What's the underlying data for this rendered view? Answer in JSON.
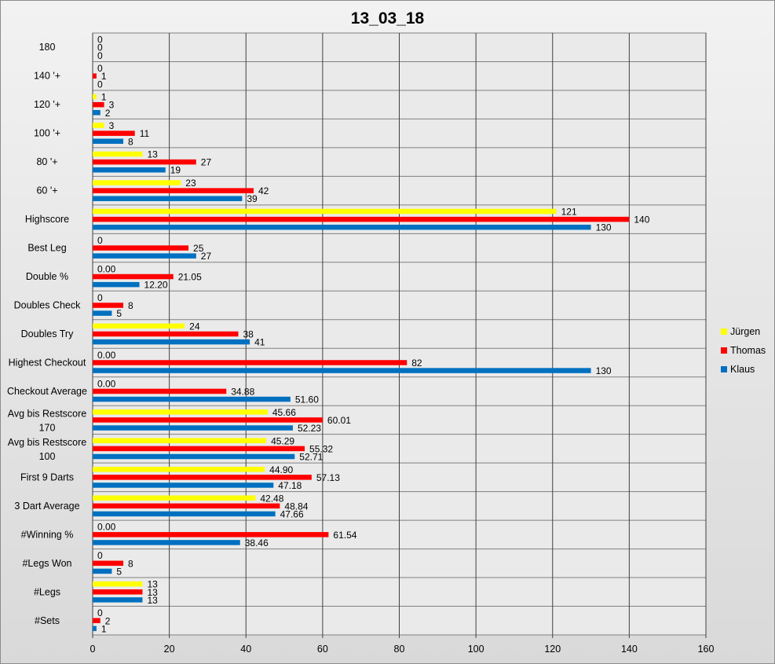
{
  "chart_data": {
    "type": "bar",
    "orientation": "horizontal",
    "title": "13_03_18",
    "xlim": [
      0,
      160
    ],
    "xticks": [
      0,
      20,
      40,
      60,
      80,
      100,
      120,
      140,
      160
    ],
    "grid": "vertical",
    "legend_position": "right",
    "categories": [
      "180",
      "140 '+",
      "120 '+",
      "100 '+",
      "80 '+",
      "60 '+",
      "Highscore",
      "Best Leg",
      "Double %",
      "Doubles Check",
      "Doubles Try",
      "Highest Checkout",
      "Checkout Average",
      "Avg bis Restscore 170",
      "Avg bis Restscore 100",
      "First 9 Darts",
      "3 Dart Average",
      "#Winning %",
      "#Legs Won",
      "#Legs",
      "#Sets"
    ],
    "series": [
      {
        "name": "Jürgen",
        "color": "#ffff00",
        "values": [
          0,
          0,
          1,
          3,
          13,
          23,
          121,
          0,
          0,
          0,
          24,
          0,
          0,
          45.66,
          45.29,
          44.9,
          42.48,
          0,
          0,
          13,
          0
        ],
        "labels": [
          "0",
          "0",
          "1",
          "3",
          "13",
          "23",
          "121",
          "0",
          "0.00",
          "0",
          "24",
          "0.00",
          "0.00",
          "45.66",
          "45.29",
          "44.90",
          "42.48",
          "0.00",
          "0",
          "13",
          "0"
        ]
      },
      {
        "name": "Thomas",
        "color": "#ff0000",
        "values": [
          0,
          1,
          3,
          11,
          27,
          42,
          140,
          25,
          21.05,
          8,
          38,
          82,
          34.88,
          60.01,
          55.32,
          57.13,
          48.84,
          61.54,
          8,
          13,
          2
        ],
        "labels": [
          "0",
          "1",
          "3",
          "11",
          "27",
          "42",
          "140",
          "25",
          "21.05",
          "8",
          "38",
          "82",
          "34.88",
          "60.01",
          "55.32",
          "57.13",
          "48.84",
          "61.54",
          "8",
          "13",
          "2"
        ]
      },
      {
        "name": "Klaus",
        "color": "#0070c0",
        "values": [
          0,
          0,
          2,
          8,
          19,
          39,
          130,
          27,
          12.2,
          5,
          41,
          130,
          51.6,
          52.23,
          52.71,
          47.18,
          47.66,
          38.46,
          5,
          13,
          1
        ],
        "labels": [
          "0",
          "0",
          "2",
          "8",
          "19",
          "39",
          "130",
          "27",
          "12.20",
          "5",
          "41",
          "130",
          "51.60",
          "52.23",
          "52.71",
          "47.18",
          "47.66",
          "38.46",
          "5",
          "13",
          "1"
        ]
      }
    ]
  }
}
